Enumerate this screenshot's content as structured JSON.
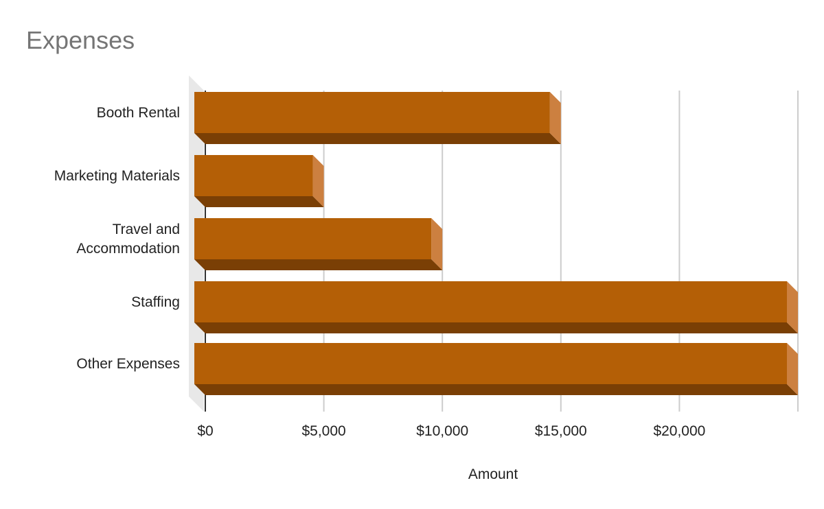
{
  "chart_data": {
    "type": "bar",
    "orientation": "horizontal",
    "style": "3d",
    "title": "Expenses",
    "xlabel": "Amount",
    "ylabel": "",
    "categories": [
      "Booth Rental",
      "Marketing Materials",
      "Travel and Accommodation",
      "Staffing",
      "Other Expenses"
    ],
    "category_label_lines": [
      [
        "Booth Rental"
      ],
      [
        "Marketing Materials"
      ],
      [
        "Travel and",
        "Accommodation"
      ],
      [
        "Staffing"
      ],
      [
        "Other Expenses"
      ]
    ],
    "values": [
      15000,
      5000,
      10000,
      25000,
      25000
    ],
    "xlim": [
      0,
      25000
    ],
    "xticks": [
      0,
      5000,
      10000,
      15000,
      20000
    ],
    "xtick_labels": [
      "$0",
      "$5,000",
      "$10,000",
      "$15,000",
      "$20,000"
    ],
    "grid": true,
    "legend": "none",
    "colors": {
      "bar_face": "#b45f06",
      "bar_side": "#cc8040",
      "bar_bottom": "#7a3f05",
      "wall": "#e8e8e8",
      "gridline": "#cccccc",
      "axis": "#333333"
    }
  }
}
